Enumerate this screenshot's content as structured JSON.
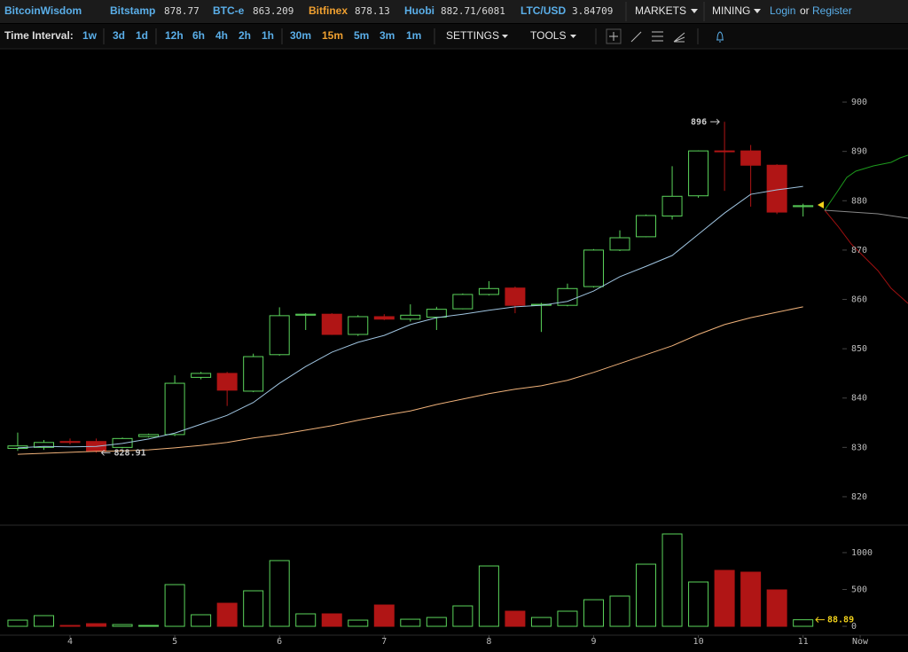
{
  "header": {
    "brand": "BitcoinWisdom",
    "tickers": [
      {
        "exchange": "Bitstamp",
        "price": 878.77
      },
      {
        "exchange": "BTC-e",
        "price": 863.209
      },
      {
        "exchange": "Bitfinex",
        "price": 878.13
      },
      {
        "exchange": "Huobi",
        "price": "882.71/6081"
      },
      {
        "exchange": "LTC/USD",
        "price": 3.84709
      }
    ],
    "menus": [
      "MARKETS",
      "MINING"
    ],
    "login": "Login",
    "or": "or",
    "register": "Register"
  },
  "toolbar": {
    "label": "Time Interval:",
    "intervals": [
      "1w",
      "3d",
      "1d",
      "12h",
      "6h",
      "4h",
      "2h",
      "1h",
      "30m",
      "15m",
      "5m",
      "3m",
      "1m"
    ],
    "menus": [
      "SETTINGS",
      "TOOLS"
    ]
  },
  "chart_data": [
    {
      "type": "candlestick",
      "up_color": "#5bd45b",
      "down_color": "#b01515",
      "x": [
        3.5,
        3.75,
        4,
        4.25,
        4.5,
        4.75,
        5,
        5.25,
        5.5,
        5.75,
        6,
        6.25,
        6.5,
        6.75,
        7,
        7.25,
        7.5,
        7.75,
        8,
        8.25,
        8.5,
        8.75,
        9,
        9.25,
        9.5,
        9.75,
        10,
        10.25,
        10.5,
        10.75,
        11
      ],
      "open": [
        829.8,
        830.0,
        831.2,
        831.2,
        830.0,
        832.2,
        832.6,
        844.2,
        845.0,
        841.4,
        848.8,
        856.8,
        857.0,
        852.9,
        856.5,
        856.0,
        856.4,
        858.1,
        861.0,
        862.3,
        858.8,
        858.8,
        862.6,
        870.0,
        872.7,
        876.9,
        881.0,
        890.1,
        890.1,
        887.2,
        878.8
      ],
      "high": [
        833.0,
        831.5,
        831.8,
        831.8,
        832.0,
        832.8,
        844.6,
        845.3,
        845.3,
        849.0,
        858.4,
        857.2,
        857.2,
        856.8,
        857.0,
        859.0,
        858.5,
        861.2,
        863.7,
        862.6,
        859.3,
        863.2,
        870.2,
        874.0,
        877.2,
        887.0,
        890.2,
        896,
        891.3,
        887.4,
        879.4
      ],
      "low": [
        829.3,
        829.5,
        830.6,
        828.91,
        829.8,
        832.0,
        832.3,
        843.8,
        838.4,
        841.2,
        848.6,
        853.8,
        852.8,
        852.6,
        855.8,
        855.5,
        853.8,
        858.0,
        860.8,
        857.2,
        853.4,
        858.6,
        862.4,
        869.8,
        872.6,
        876.2,
        880.6,
        882.0,
        878.8,
        877.3,
        876.8
      ],
      "close": [
        830.3,
        831.0,
        831.0,
        829.2,
        831.8,
        832.6,
        843.0,
        845.0,
        841.6,
        848.4,
        856.7,
        857.0,
        852.9,
        856.5,
        856.0,
        856.8,
        858.0,
        861.0,
        862.2,
        858.8,
        859.0,
        862.2,
        870.0,
        872.5,
        877.0,
        880.9,
        890.1,
        890.0,
        887.2,
        877.7,
        879.0
      ],
      "lines": [
        {
          "color": "#9fc4e0",
          "values": [
            829.9,
            830.2,
            830.1,
            830.2,
            830.8,
            831.7,
            832.9,
            834.7,
            836.5,
            839.1,
            843.0,
            846.4,
            849.3,
            851.3,
            852.7,
            854.9,
            856.3,
            857.0,
            857.8,
            858.5,
            858.8,
            859.6,
            861.7,
            864.6,
            866.7,
            868.9,
            873.2,
            877.5,
            881.3,
            882.2,
            882.9
          ]
        },
        {
          "color": "#f0b27a",
          "values": [
            828.6,
            828.8,
            829.0,
            829.2,
            829.3,
            829.5,
            829.9,
            830.4,
            831.0,
            831.9,
            832.6,
            833.5,
            834.4,
            835.5,
            836.5,
            837.4,
            838.7,
            839.8,
            840.9,
            841.8,
            842.5,
            843.6,
            845.2,
            847.0,
            848.8,
            850.6,
            852.9,
            854.9,
            856.3,
            857.4,
            858.5
          ]
        }
      ],
      "high_label": "896",
      "low_label": "828.91",
      "xlim": [
        3.331,
        12.002
      ],
      "ylim": [
        814.6,
        910.8
      ],
      "yticks": [
        820,
        830,
        840,
        850,
        860,
        870,
        880,
        890,
        900
      ]
    },
    {
      "type": "bar",
      "up_color": "#5bd45b",
      "down_color": "#b01515",
      "label_color": "#f2d21b",
      "x": [
        3.5,
        3.75,
        4,
        4.25,
        4.5,
        4.75,
        5,
        5.25,
        5.5,
        5.75,
        6,
        6.25,
        6.5,
        6.75,
        7,
        7.25,
        7.5,
        7.75,
        8,
        8.25,
        8.5,
        8.75,
        9,
        9.25,
        9.5,
        9.75,
        10,
        10.25,
        10.5,
        10.75,
        11
      ],
      "values": [
        84,
        145,
        12,
        36,
        24,
        12,
        566,
        157,
        313,
        482,
        892,
        169,
        169,
        84,
        289,
        96,
        120,
        277,
        819,
        205,
        120,
        205,
        361,
        410,
        843,
        1253,
        602,
        759,
        735,
        494,
        88.89
      ],
      "last_label": "88.89",
      "xlim": [
        3.331,
        12.002
      ],
      "ylim": [
        -108,
        1361
      ],
      "yticks": [
        0,
        500,
        1000
      ],
      "xticks": [
        4,
        5,
        6,
        7,
        8,
        9,
        10,
        11,
        {
          "value": 11.545,
          "label": "Now"
        }
      ]
    }
  ]
}
